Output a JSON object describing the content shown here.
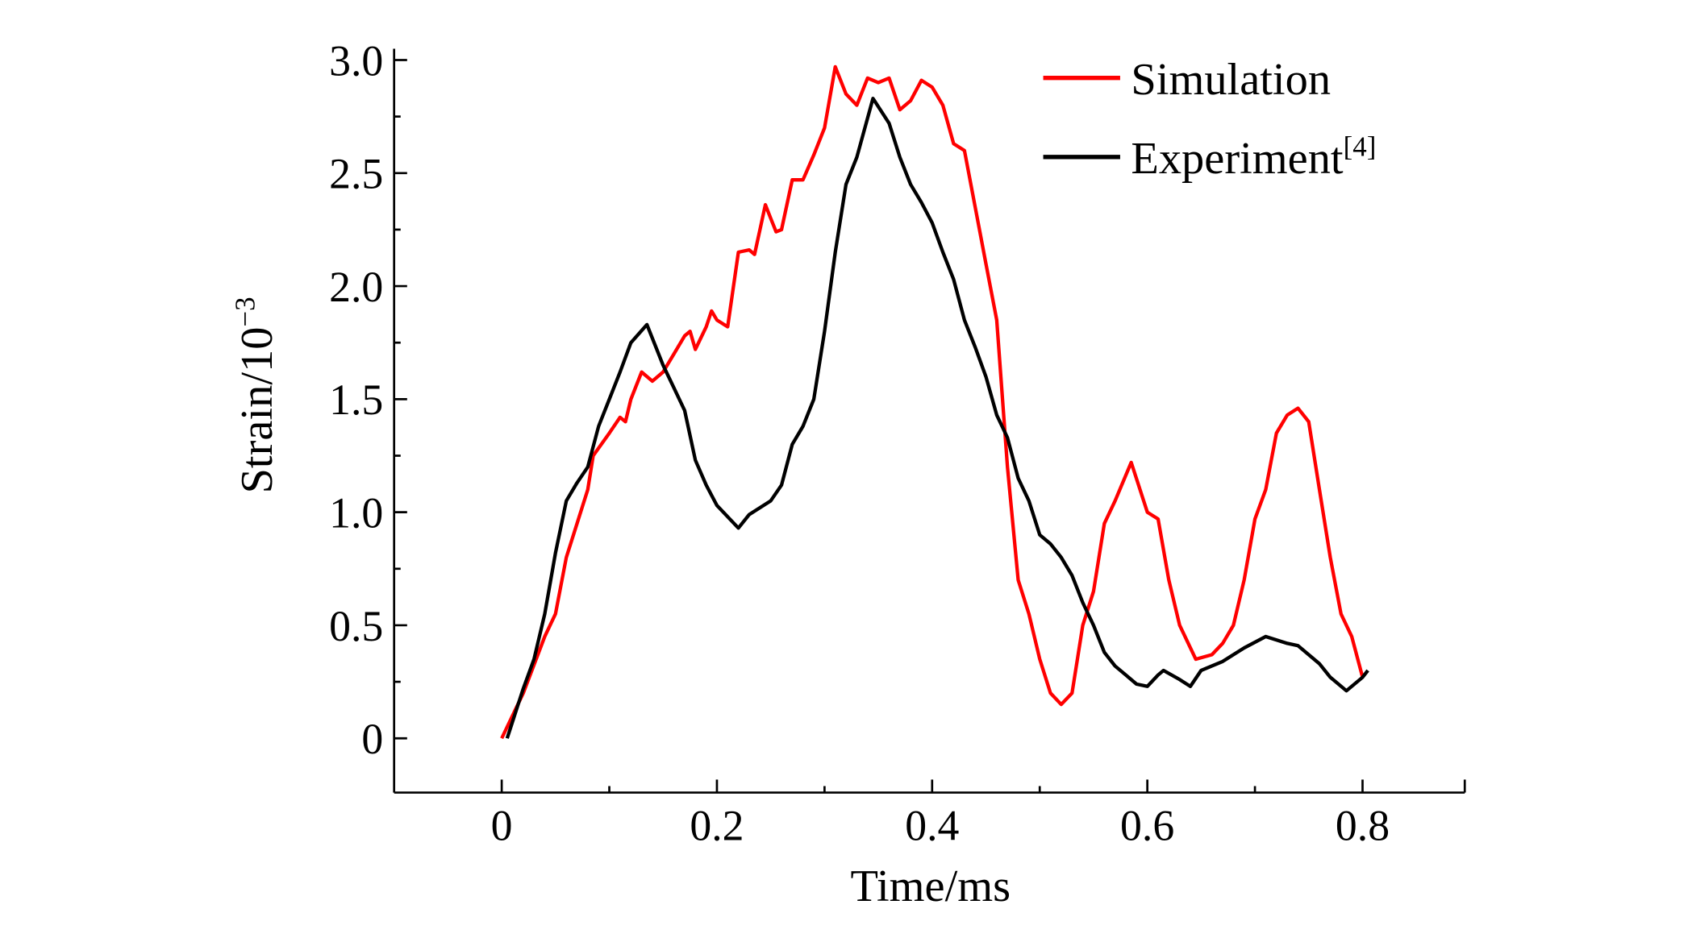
{
  "chart_data": {
    "type": "line",
    "title": "",
    "xlabel": "Time/ms",
    "ylabel": "Strain/10",
    "ylabel_sup": "−3",
    "xlim": [
      -0.1,
      0.895
    ],
    "ylim": [
      -0.24,
      3.05
    ],
    "xticks": [
      0,
      0.2,
      0.4,
      0.6,
      0.8
    ],
    "xtick_labels": [
      "0",
      "0.2",
      "0.4",
      "0.6",
      "0.8"
    ],
    "xminor": [
      0.1,
      0.3,
      0.5,
      0.7
    ],
    "yticks": [
      0,
      0.5,
      1.0,
      1.5,
      2.0,
      2.5,
      3.0
    ],
    "ytick_labels": [
      "0",
      "0.5",
      "1.0",
      "1.5",
      "2.0",
      "2.5",
      "3.0"
    ],
    "yminor": [
      0.25,
      0.75,
      1.25,
      1.75,
      2.25,
      2.75
    ],
    "grid": false,
    "legend_position": "top-right",
    "series": [
      {
        "name": "Simulation",
        "sup": "",
        "color": "#ff0000",
        "x": [
          0,
          0.02,
          0.04,
          0.05,
          0.06,
          0.07,
          0.08,
          0.085,
          0.1,
          0.11,
          0.115,
          0.12,
          0.13,
          0.14,
          0.15,
          0.16,
          0.17,
          0.175,
          0.18,
          0.19,
          0.195,
          0.2,
          0.21,
          0.22,
          0.23,
          0.235,
          0.24,
          0.245,
          0.25,
          0.255,
          0.26,
          0.27,
          0.28,
          0.29,
          0.3,
          0.31,
          0.32,
          0.33,
          0.34,
          0.35,
          0.36,
          0.37,
          0.38,
          0.39,
          0.4,
          0.41,
          0.42,
          0.43,
          0.44,
          0.45,
          0.46,
          0.47,
          0.48,
          0.49,
          0.5,
          0.51,
          0.52,
          0.53,
          0.54,
          0.55,
          0.56,
          0.57,
          0.585,
          0.6,
          0.61,
          0.62,
          0.63,
          0.645,
          0.66,
          0.67,
          0.68,
          0.69,
          0.7,
          0.71,
          0.72,
          0.73,
          0.74,
          0.75,
          0.76,
          0.77,
          0.78,
          0.79,
          0.8
        ],
        "y": [
          0,
          0.2,
          0.45,
          0.55,
          0.8,
          0.95,
          1.1,
          1.25,
          1.35,
          1.42,
          1.4,
          1.5,
          1.62,
          1.58,
          1.62,
          1.7,
          1.78,
          1.8,
          1.72,
          1.82,
          1.89,
          1.85,
          1.82,
          2.15,
          2.16,
          2.14,
          2.25,
          2.36,
          2.3,
          2.24,
          2.25,
          2.47,
          2.47,
          2.58,
          2.7,
          2.97,
          2.85,
          2.8,
          2.92,
          2.9,
          2.92,
          2.78,
          2.82,
          2.91,
          2.88,
          2.8,
          2.63,
          2.6,
          2.35,
          2.1,
          1.85,
          1.2,
          0.7,
          0.55,
          0.35,
          0.2,
          0.15,
          0.2,
          0.5,
          0.65,
          0.95,
          1.05,
          1.22,
          1.0,
          0.97,
          0.7,
          0.5,
          0.35,
          0.37,
          0.42,
          0.5,
          0.7,
          0.97,
          1.1,
          1.35,
          1.43,
          1.46,
          1.4,
          1.1,
          0.8,
          0.55,
          0.45,
          0.27
        ]
      },
      {
        "name": "Experiment",
        "sup": "[4]",
        "color": "#000000",
        "x": [
          0.005,
          0.02,
          0.03,
          0.04,
          0.05,
          0.06,
          0.07,
          0.08,
          0.09,
          0.1,
          0.11,
          0.12,
          0.135,
          0.15,
          0.16,
          0.17,
          0.18,
          0.19,
          0.2,
          0.22,
          0.23,
          0.25,
          0.26,
          0.27,
          0.28,
          0.29,
          0.3,
          0.31,
          0.32,
          0.33,
          0.345,
          0.36,
          0.37,
          0.38,
          0.39,
          0.4,
          0.41,
          0.42,
          0.43,
          0.44,
          0.45,
          0.46,
          0.47,
          0.48,
          0.49,
          0.5,
          0.51,
          0.52,
          0.53,
          0.54,
          0.55,
          0.56,
          0.57,
          0.58,
          0.59,
          0.6,
          0.61,
          0.615,
          0.63,
          0.64,
          0.65,
          0.67,
          0.69,
          0.71,
          0.73,
          0.74,
          0.76,
          0.77,
          0.785,
          0.8,
          0.805
        ],
        "y": [
          0,
          0.22,
          0.35,
          0.55,
          0.82,
          1.05,
          1.13,
          1.2,
          1.38,
          1.5,
          1.62,
          1.75,
          1.83,
          1.65,
          1.55,
          1.45,
          1.23,
          1.12,
          1.03,
          0.93,
          0.99,
          1.05,
          1.12,
          1.3,
          1.38,
          1.5,
          1.8,
          2.15,
          2.45,
          2.57,
          2.83,
          2.72,
          2.57,
          2.45,
          2.37,
          2.28,
          2.15,
          2.03,
          1.85,
          1.73,
          1.6,
          1.43,
          1.33,
          1.15,
          1.05,
          0.9,
          0.86,
          0.8,
          0.72,
          0.6,
          0.5,
          0.38,
          0.32,
          0.28,
          0.24,
          0.23,
          0.28,
          0.3,
          0.26,
          0.23,
          0.3,
          0.34,
          0.4,
          0.45,
          0.42,
          0.41,
          0.33,
          0.27,
          0.21,
          0.27,
          0.3
        ]
      }
    ]
  }
}
